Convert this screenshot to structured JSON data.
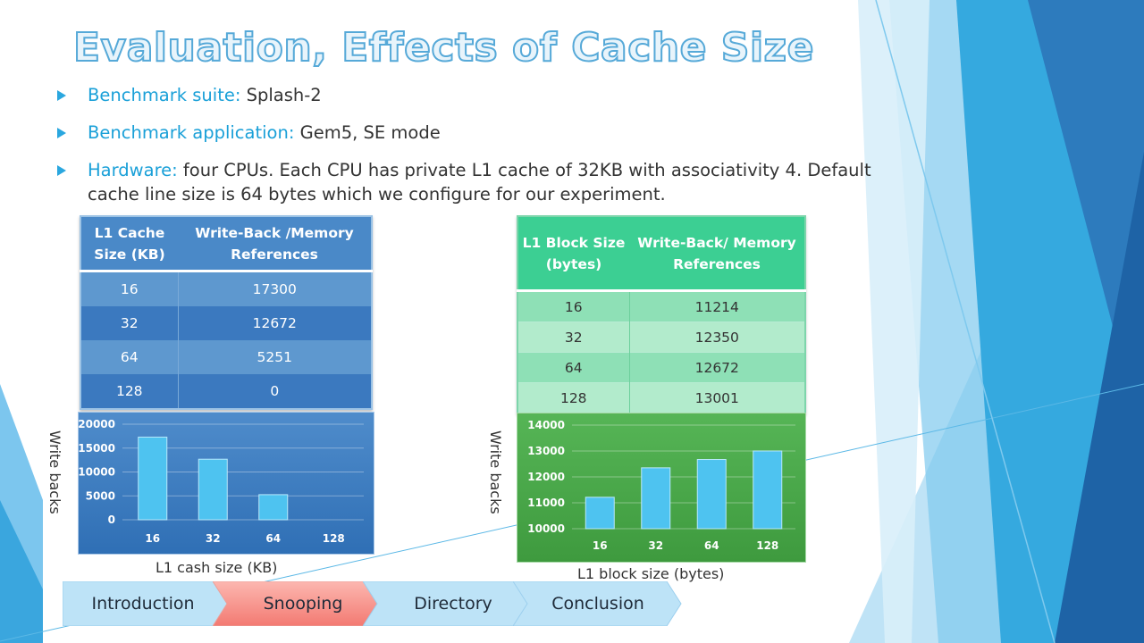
{
  "title": "Evaluation, Effects of Cache Size",
  "bullets": [
    {
      "label": "Benchmark suite:",
      "text": " Splash-2"
    },
    {
      "label": "Benchmark application:",
      "text": " Gem5, SE mode"
    },
    {
      "label": "Hardware:",
      "text": " four CPUs. Each CPU has private L1 cache of 32KB with associativity 4. Default cache line size is 64 bytes which we configure for our experiment."
    }
  ],
  "table_cache": {
    "headers": [
      "L1 Cache Size (KB)",
      "Write-Back /Memory References"
    ],
    "rows": [
      [
        "16",
        "17300"
      ],
      [
        "32",
        "12672"
      ],
      [
        "64",
        "5251"
      ],
      [
        "128",
        "0"
      ]
    ]
  },
  "table_block": {
    "headers": [
      "L1 Block Size (bytes)",
      "Write-Back/ Memory References"
    ],
    "rows": [
      [
        "16",
        "11214"
      ],
      [
        "32",
        "12350"
      ],
      [
        "64",
        "12672"
      ],
      [
        "128",
        "13001"
      ]
    ]
  },
  "chart_data": [
    {
      "type": "bar",
      "categories": [
        "16",
        "32",
        "64",
        "128"
      ],
      "values": [
        17300,
        12672,
        5251,
        0
      ],
      "ylim": [
        0,
        20000
      ],
      "yticks": [
        "20000",
        "15000",
        "10000",
        "5000",
        "0"
      ],
      "xlabel": "L1 cash size (KB)",
      "ylabel": "Write backs",
      "grid": true
    },
    {
      "type": "bar",
      "categories": [
        "16",
        "32",
        "64",
        "128"
      ],
      "values": [
        11214,
        12350,
        12672,
        13001
      ],
      "ylim": [
        10000,
        14000
      ],
      "yticks": [
        "14000",
        "13000",
        "12000",
        "11000",
        "10000"
      ],
      "xlabel": "L1 block size (bytes)",
      "ylabel": "Write backs",
      "grid": true
    }
  ],
  "nav": [
    {
      "label": "Introduction",
      "color": "#b9e2f7",
      "state": "normal"
    },
    {
      "label": "Snooping",
      "color": "#f4847e",
      "state": "active"
    },
    {
      "label": "Directory",
      "color": "#b9e2f7",
      "state": "normal"
    },
    {
      "label": "Conclusion",
      "color": "#b9e2f7",
      "state": "normal"
    }
  ],
  "colors": {
    "accent": "#2aa7df",
    "table1": "#3b79bf",
    "table2": "#3ccf93",
    "bar": "#4ec3f0"
  }
}
